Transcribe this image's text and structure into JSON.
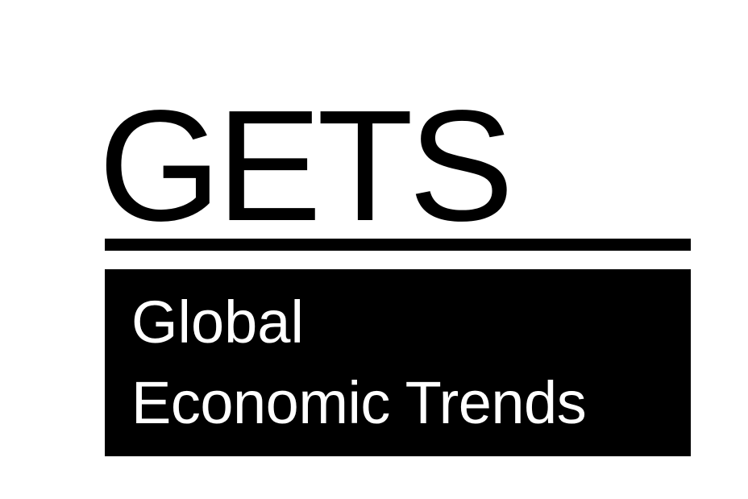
{
  "logo": {
    "acronym": "GETS",
    "tagline_lines": [
      "Global",
      "Economic Trends"
    ],
    "colors": {
      "background": "#ffffff",
      "foreground": "#000000",
      "inverse_text": "#ffffff"
    }
  }
}
